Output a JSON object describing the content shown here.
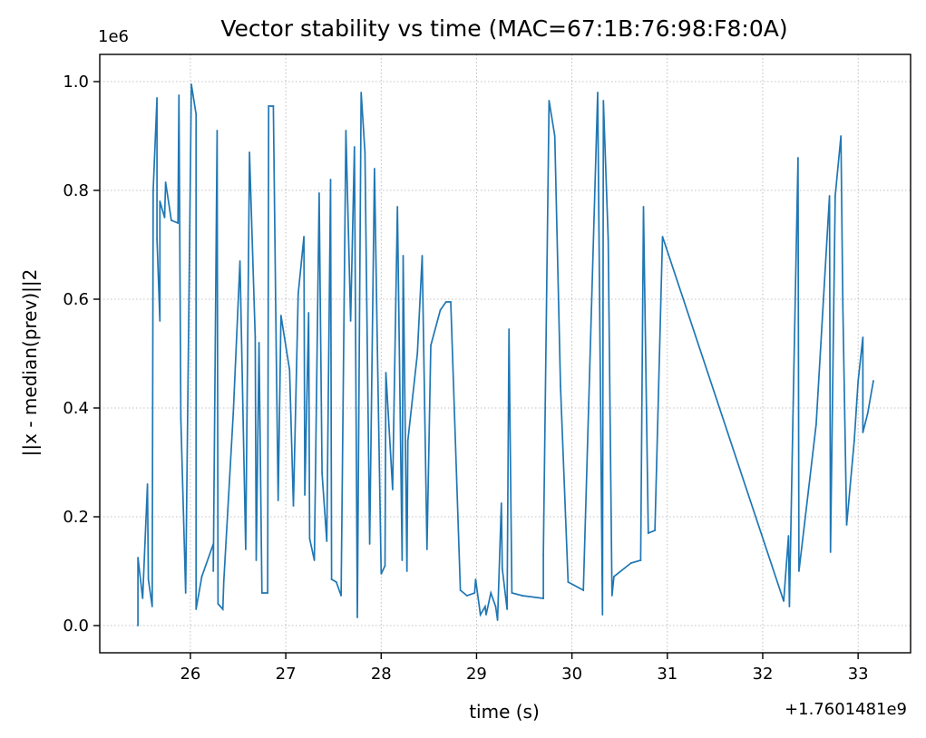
{
  "chart_data": {
    "type": "line",
    "title": "Vector stability vs time (MAC=67:1B:76:98:F8:0A)",
    "xlabel": "time (s)",
    "ylabel": "||x - median(prev)||2",
    "xlim": [
      25.05,
      33.55
    ],
    "ylim": [
      -0.05,
      1.05
    ],
    "x_ticks": [
      26,
      27,
      28,
      29,
      30,
      31,
      32,
      33
    ],
    "x_tick_labels": [
      "26",
      "27",
      "28",
      "29",
      "30",
      "31",
      "32",
      "33"
    ],
    "y_ticks": [
      0.0,
      0.2,
      0.4,
      0.6,
      0.8,
      1.0
    ],
    "y_tick_labels": [
      "0.0",
      "0.2",
      "0.4",
      "0.6",
      "0.8",
      "1.0"
    ],
    "y_multiplier_label": "1e6",
    "x_offset_label": "+1.7601481e9",
    "grid": true,
    "line_color": "#1f77b4",
    "series": [
      {
        "points": [
          [
            25.45,
            0.0
          ],
          [
            25.45,
            0.125
          ],
          [
            25.5,
            0.05
          ],
          [
            25.55,
            0.26
          ],
          [
            25.56,
            0.085
          ],
          [
            25.6,
            0.035
          ],
          [
            25.61,
            0.8
          ],
          [
            25.65,
            0.97
          ],
          [
            25.65,
            0.71
          ],
          [
            25.68,
            0.56
          ],
          [
            25.68,
            0.78
          ],
          [
            25.73,
            0.75
          ],
          [
            25.74,
            0.815
          ],
          [
            25.8,
            0.745
          ],
          [
            25.87,
            0.74
          ],
          [
            25.88,
            0.975
          ],
          [
            25.9,
            0.38
          ],
          [
            25.95,
            0.06
          ],
          [
            26.01,
            0.995
          ],
          [
            26.06,
            0.94
          ],
          [
            26.06,
            0.03
          ],
          [
            26.12,
            0.09
          ],
          [
            26.24,
            0.15
          ],
          [
            26.24,
            0.1
          ],
          [
            26.28,
            0.91
          ],
          [
            26.29,
            0.04
          ],
          [
            26.34,
            0.03
          ],
          [
            26.35,
            0.08
          ],
          [
            26.45,
            0.39
          ],
          [
            26.52,
            0.67
          ],
          [
            26.58,
            0.14
          ],
          [
            26.62,
            0.87
          ],
          [
            26.68,
            0.53
          ],
          [
            26.69,
            0.12
          ],
          [
            26.72,
            0.52
          ],
          [
            26.75,
            0.06
          ],
          [
            26.81,
            0.06
          ],
          [
            26.82,
            0.955
          ],
          [
            26.87,
            0.955
          ],
          [
            26.9,
            0.5
          ],
          [
            26.92,
            0.23
          ],
          [
            26.95,
            0.57
          ],
          [
            27.04,
            0.47
          ],
          [
            27.08,
            0.22
          ],
          [
            27.13,
            0.61
          ],
          [
            27.19,
            0.715
          ],
          [
            27.2,
            0.24
          ],
          [
            27.24,
            0.575
          ],
          [
            27.25,
            0.16
          ],
          [
            27.3,
            0.12
          ],
          [
            27.35,
            0.795
          ],
          [
            27.38,
            0.28
          ],
          [
            27.43,
            0.155
          ],
          [
            27.47,
            0.82
          ],
          [
            27.48,
            0.085
          ],
          [
            27.53,
            0.08
          ],
          [
            27.58,
            0.055
          ],
          [
            27.63,
            0.91
          ],
          [
            27.68,
            0.56
          ],
          [
            27.72,
            0.88
          ],
          [
            27.75,
            0.015
          ],
          [
            27.79,
            0.98
          ],
          [
            27.83,
            0.87
          ],
          [
            27.88,
            0.15
          ],
          [
            27.93,
            0.84
          ],
          [
            27.96,
            0.51
          ],
          [
            28.0,
            0.095
          ],
          [
            28.04,
            0.11
          ],
          [
            28.05,
            0.465
          ],
          [
            28.12,
            0.25
          ],
          [
            28.17,
            0.77
          ],
          [
            28.22,
            0.12
          ],
          [
            28.23,
            0.68
          ],
          [
            28.27,
            0.1
          ],
          [
            28.28,
            0.34
          ],
          [
            28.38,
            0.5
          ],
          [
            28.43,
            0.68
          ],
          [
            28.48,
            0.14
          ],
          [
            28.52,
            0.515
          ],
          [
            28.62,
            0.58
          ],
          [
            28.68,
            0.595
          ],
          [
            28.73,
            0.595
          ],
          [
            28.83,
            0.065
          ],
          [
            28.9,
            0.055
          ],
          [
            28.98,
            0.06
          ],
          [
            28.99,
            0.085
          ],
          [
            29.04,
            0.02
          ],
          [
            29.09,
            0.035
          ],
          [
            29.1,
            0.02
          ],
          [
            29.15,
            0.06
          ],
          [
            29.2,
            0.035
          ],
          [
            29.22,
            0.01
          ],
          [
            29.26,
            0.225
          ],
          [
            29.27,
            0.105
          ],
          [
            29.32,
            0.03
          ],
          [
            29.34,
            0.545
          ],
          [
            29.37,
            0.06
          ],
          [
            29.48,
            0.055
          ],
          [
            29.7,
            0.05
          ],
          [
            29.7,
            0.13
          ],
          [
            29.76,
            0.965
          ],
          [
            29.82,
            0.9
          ],
          [
            29.88,
            0.44
          ],
          [
            29.96,
            0.08
          ],
          [
            30.12,
            0.065
          ],
          [
            30.27,
            0.98
          ],
          [
            30.32,
            0.02
          ],
          [
            30.33,
            0.965
          ],
          [
            30.38,
            0.71
          ],
          [
            30.42,
            0.055
          ],
          [
            30.44,
            0.09
          ],
          [
            30.62,
            0.115
          ],
          [
            30.72,
            0.12
          ],
          [
            30.75,
            0.77
          ],
          [
            30.8,
            0.17
          ],
          [
            30.87,
            0.175
          ],
          [
            30.95,
            0.715
          ],
          [
            32.22,
            0.045
          ],
          [
            32.27,
            0.165
          ],
          [
            32.28,
            0.035
          ],
          [
            32.32,
            0.41
          ],
          [
            32.37,
            0.86
          ],
          [
            32.38,
            0.1
          ],
          [
            32.48,
            0.25
          ],
          [
            32.56,
            0.37
          ],
          [
            32.7,
            0.79
          ],
          [
            32.71,
            0.135
          ],
          [
            32.76,
            0.79
          ],
          [
            32.82,
            0.9
          ],
          [
            32.84,
            0.59
          ],
          [
            32.88,
            0.185
          ],
          [
            32.96,
            0.34
          ],
          [
            33.0,
            0.45
          ],
          [
            33.05,
            0.53
          ],
          [
            33.05,
            0.355
          ],
          [
            33.1,
            0.39
          ],
          [
            33.16,
            0.45
          ]
        ]
      }
    ]
  }
}
